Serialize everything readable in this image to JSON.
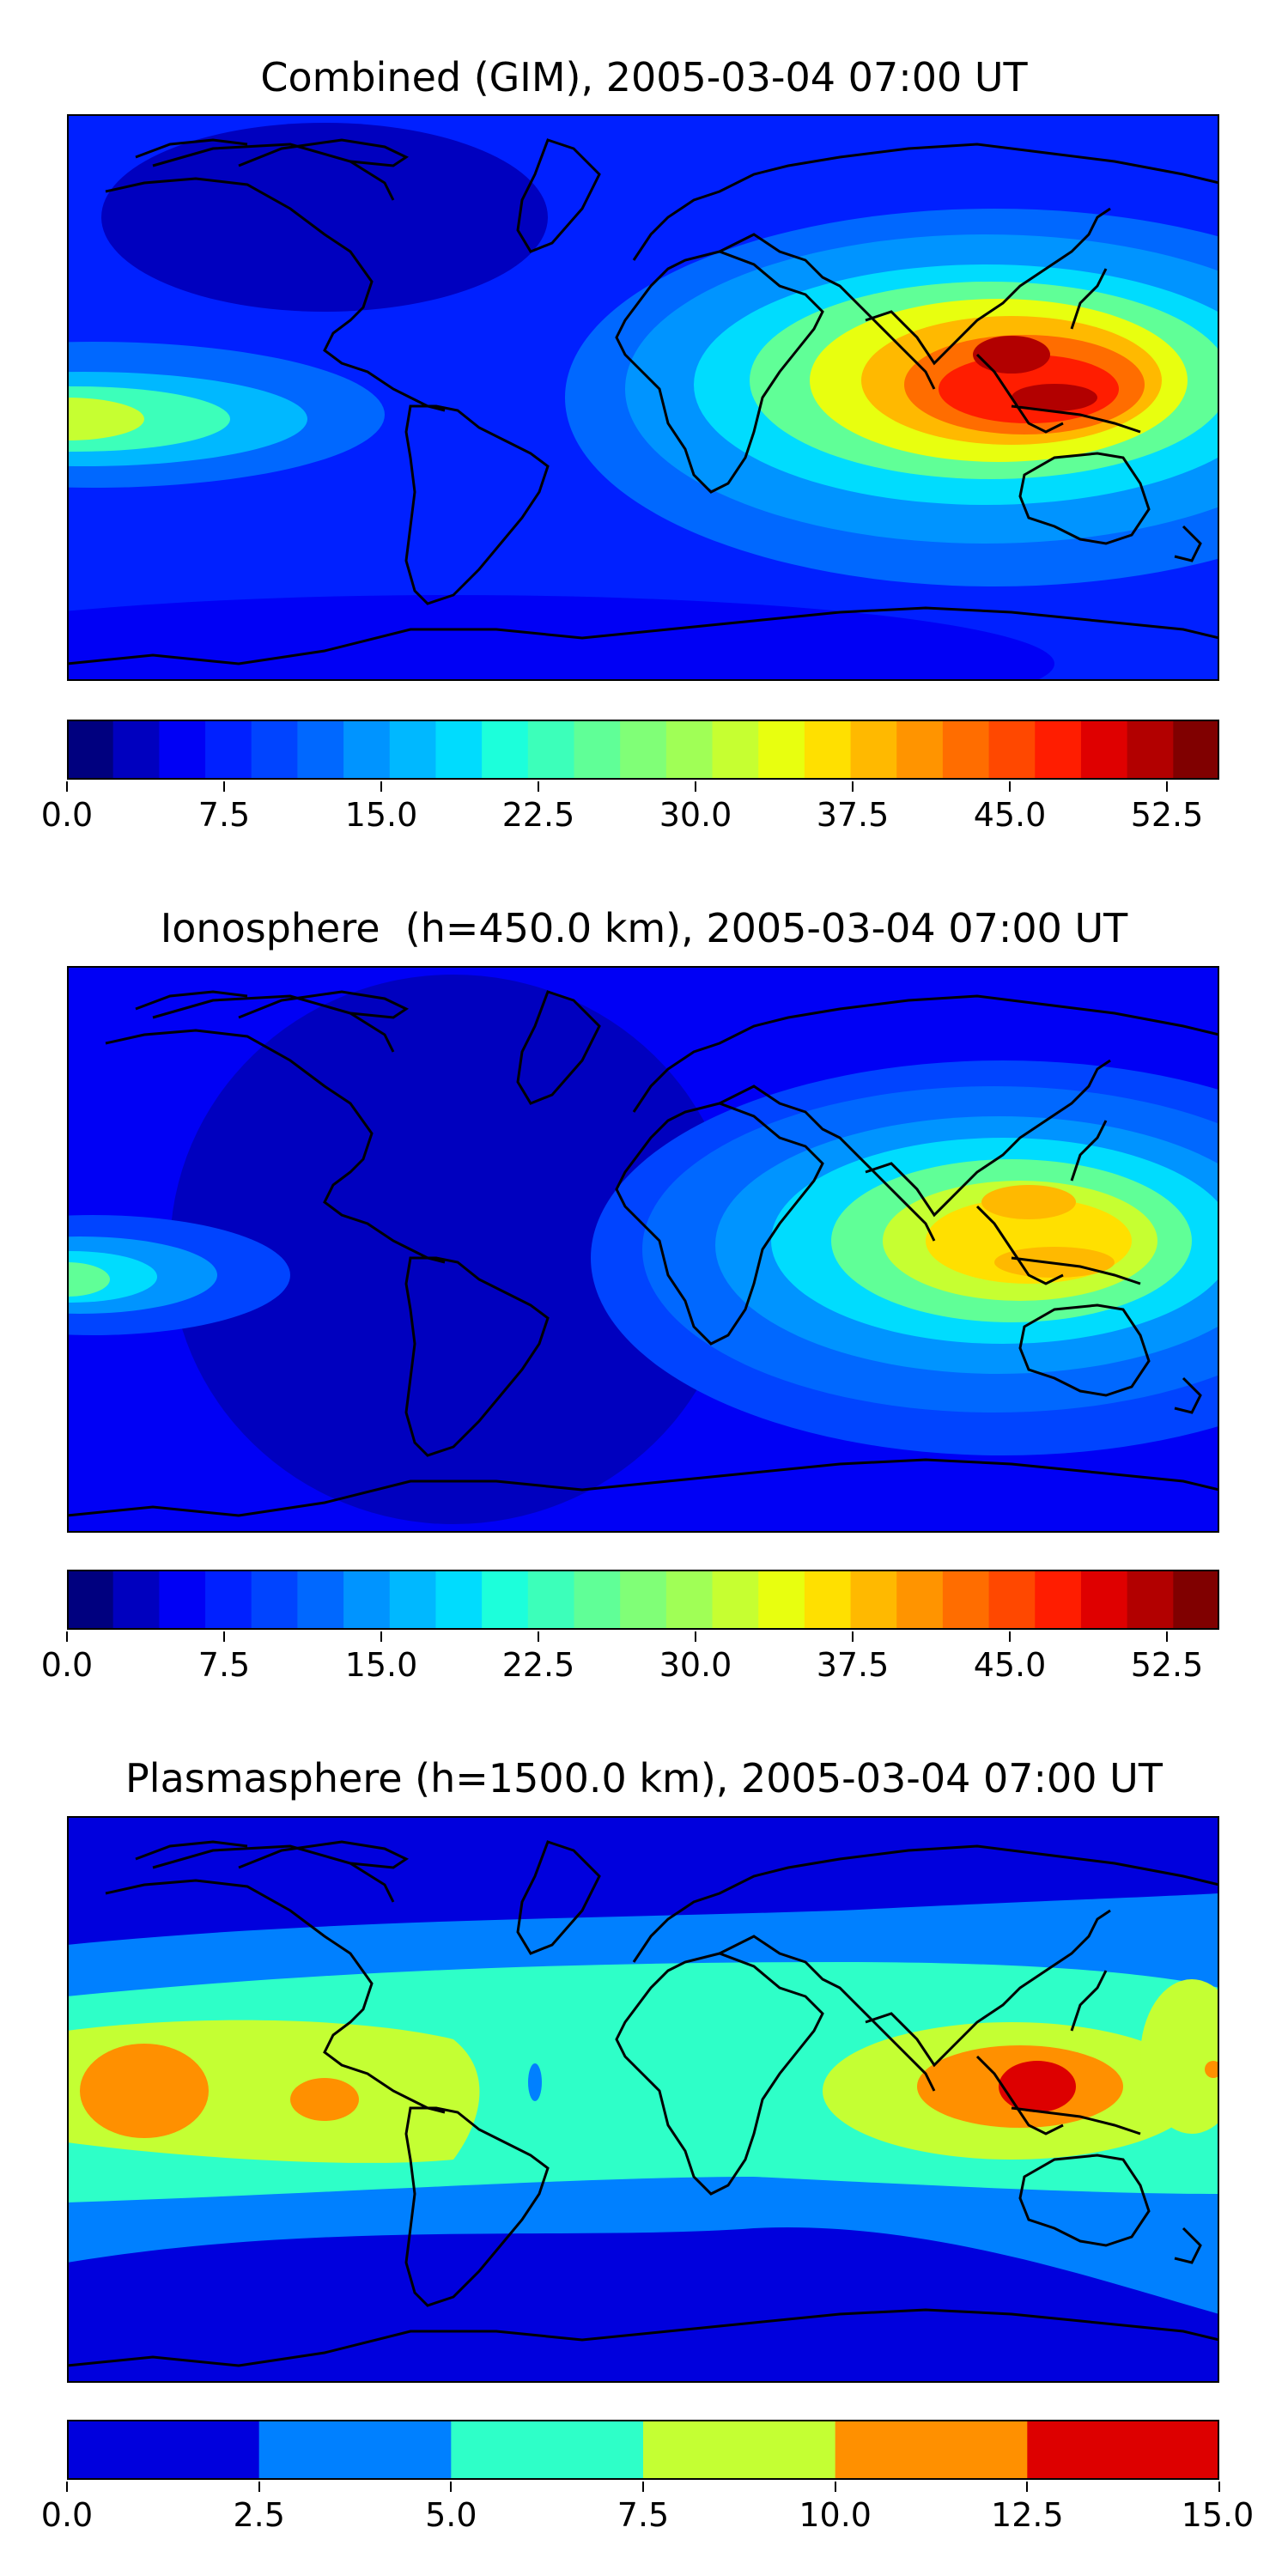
{
  "panels": [
    {
      "title": "Combined (GIM), 2005-03-04 07:00 UT",
      "colorbar": {
        "ticks": [
          "0.0",
          "7.5",
          "15.0",
          "22.5",
          "30.0",
          "37.5",
          "45.0",
          "52.5"
        ],
        "range": [
          0,
          55
        ],
        "colors": [
          "#00007f",
          "#0000bf",
          "#0000f5",
          "#0020ff",
          "#0044ff",
          "#0068ff",
          "#0094ff",
          "#00b8ff",
          "#00dcfe",
          "#1cffdb",
          "#3cffba",
          "#60ff97",
          "#80ff77",
          "#a0ff56",
          "#c6ff31",
          "#e8ff0f",
          "#ffe000",
          "#ffb900",
          "#ff9400",
          "#ff6d00",
          "#ff4800",
          "#ff1d00",
          "#df0000",
          "#b20000",
          "#800000"
        ]
      }
    },
    {
      "title": "Ionosphere  (h=450.0 km), 2005-03-04 07:00 UT",
      "colorbar": {
        "ticks": [
          "0.0",
          "7.5",
          "15.0",
          "22.5",
          "30.0",
          "37.5",
          "45.0",
          "52.5"
        ],
        "range": [
          0,
          55
        ],
        "colors": [
          "#00007f",
          "#0000bf",
          "#0000f5",
          "#0020ff",
          "#0044ff",
          "#0068ff",
          "#0094ff",
          "#00b8ff",
          "#00dcfe",
          "#1cffdb",
          "#3cffba",
          "#60ff97",
          "#80ff77",
          "#a0ff56",
          "#c6ff31",
          "#e8ff0f",
          "#ffe000",
          "#ffb900",
          "#ff9400",
          "#ff6d00",
          "#ff4800",
          "#ff1d00",
          "#df0000",
          "#b20000",
          "#800000"
        ]
      }
    },
    {
      "title": "Plasmasphere (h=1500.0 km), 2005-03-04 07:00 UT",
      "colorbar": {
        "ticks": [
          "0.0",
          "2.5",
          "5.0",
          "7.5",
          "10.0",
          "12.5",
          "15.0"
        ],
        "range": [
          0,
          15
        ],
        "colors": [
          "#0000dd",
          "#0080ff",
          "#2effc8",
          "#c4ff33",
          "#ff9000",
          "#dd0000"
        ]
      }
    }
  ],
  "colors": {
    "coastline": "#000000"
  }
}
